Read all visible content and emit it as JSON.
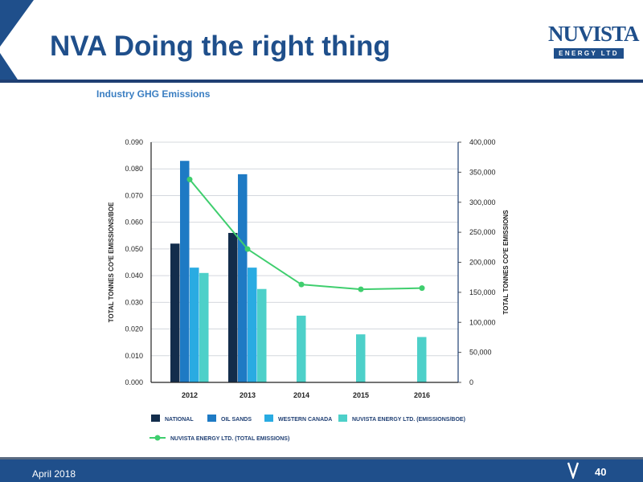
{
  "slide": {
    "title": "NVA Doing the right thing",
    "date": "April 2018",
    "page": "40"
  },
  "logo": {
    "name": "NUVISTA",
    "tagline": "ENERGY LTD"
  },
  "colors": {
    "brand": "#1f4f8b",
    "national": "#132d4c",
    "oil_sands": "#1e7ac4",
    "western_canada": "#29abe2",
    "nuvista_intensity": "#4dd0c9",
    "nuvista_total": "#3fce6e"
  },
  "chart_data": {
    "type": "bar",
    "title": "Industry GHG Emissions",
    "categories": [
      "2012",
      "2013",
      "2014",
      "2015",
      "2016"
    ],
    "ylabel": "TOTAL TONNES CO²E EMISSIONS/BOE",
    "ylabel_right": "TOTAL TONNES CO²E EMISSIONS",
    "ylim": [
      0,
      0.09
    ],
    "ylim_right": [
      0,
      400000
    ],
    "yticks": [
      "0.000",
      "0.010",
      "0.020",
      "0.030",
      "0.040",
      "0.050",
      "0.060",
      "0.070",
      "0.080",
      "0.090"
    ],
    "yticks_right": [
      "0",
      "50,000",
      "100,000",
      "150,000",
      "200,000",
      "250,000",
      "300,000",
      "350,000",
      "400,000"
    ],
    "grid": true,
    "legend_position": "bottom",
    "series": [
      {
        "name": "NATIONAL",
        "values": [
          0.052,
          0.056,
          null,
          null,
          null
        ]
      },
      {
        "name": "OIL SANDS",
        "values": [
          0.083,
          0.078,
          null,
          null,
          null
        ]
      },
      {
        "name": "WESTERN CANADA",
        "values": [
          0.043,
          0.043,
          null,
          null,
          null
        ]
      },
      {
        "name": "NUVISTA ENERGY LTD. (EMISSIONS/BOE)",
        "values": [
          0.041,
          0.035,
          0.025,
          0.018,
          0.017
        ]
      }
    ],
    "line_series": {
      "name": "NUVISTA ENERGY LTD. (TOTAL EMISSIONS)",
      "axis": "right",
      "values": [
        338000,
        222000,
        163000,
        155000,
        157000
      ]
    }
  }
}
